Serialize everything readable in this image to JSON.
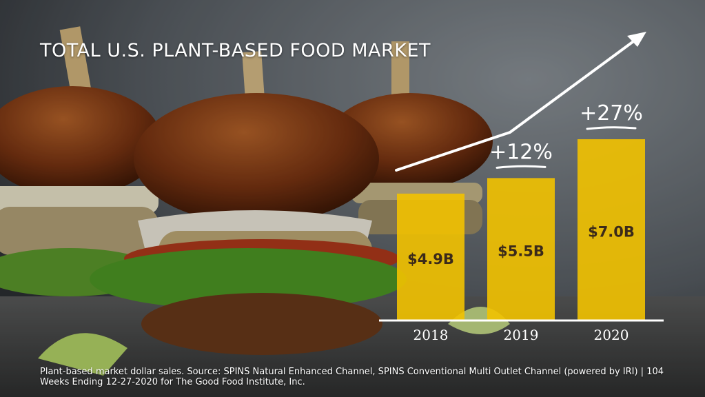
{
  "title": "TOTAL U.S. PLANT-BASED FOOD MARKET",
  "source": "Plant-based market dollar sales. Source: SPINS Natural Enhanced Channel, SPINS Conventional Multi Outlet Channel (powered by IRI) | 104 Weeks Ending 12-27-2020 for The Good Food Institute, Inc.",
  "colors": {
    "bar": "#f2c200",
    "text": "#ffffff",
    "bar_label": "#3b2a1a"
  },
  "background": {
    "subject": "plant-based burgers photo"
  },
  "chart_data": {
    "type": "bar",
    "categories": [
      "2018",
      "2019",
      "2020"
    ],
    "values": [
      4.9,
      5.5,
      7.0
    ],
    "value_labels": [
      "$4.9B",
      "$5.5B",
      "$7.0B"
    ],
    "growth_annotations": [
      {
        "category": "2019",
        "label": "+12%"
      },
      {
        "category": "2020",
        "label": "+27%"
      }
    ],
    "trend_arrow": true,
    "grid": false,
    "xlabel": "",
    "ylabel": ""
  }
}
